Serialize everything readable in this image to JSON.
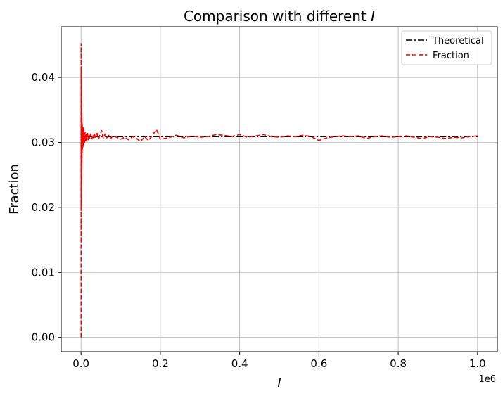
{
  "chart_data": {
    "type": "line",
    "title_text": "Comparison with different ",
    "title_var": "I",
    "xlabel": "I",
    "ylabel": "Fraction",
    "x_offset_label": "1e6",
    "xlim": [
      -50000,
      1050000
    ],
    "ylim": [
      -0.0022,
      0.0478
    ],
    "x_ticks": [
      0,
      200000,
      400000,
      600000,
      800000,
      1000000
    ],
    "x_tick_labels": [
      "0.0",
      "0.2",
      "0.4",
      "0.6",
      "0.8",
      "1.0"
    ],
    "y_ticks": [
      0.0,
      0.01,
      0.02,
      0.03,
      0.04
    ],
    "y_tick_labels": [
      "0.00",
      "0.01",
      "0.02",
      "0.03",
      "0.04"
    ],
    "grid": true,
    "legend_position": "top-right",
    "series": [
      {
        "name": "Theoretical",
        "color": "#000000",
        "style": "dashdot",
        "x": [
          0,
          1000000
        ],
        "y": [
          0.0309,
          0.0309
        ]
      },
      {
        "name": "Fraction",
        "color": "#ff0000",
        "style": "dashed",
        "x": [
          100,
          200,
          300,
          400,
          500,
          600,
          700,
          800,
          900,
          1000,
          1200,
          1400,
          1600,
          1800,
          2000,
          2300,
          2600,
          3000,
          3500,
          4000,
          4500,
          5000,
          5500,
          6000,
          7000,
          8000,
          9000,
          10000,
          11000,
          12000,
          13000,
          14000,
          15000,
          16000,
          18000,
          20000,
          22000,
          24000,
          26000,
          28000,
          30000,
          33000,
          36000,
          40000,
          44000,
          48000,
          52000,
          56000,
          60000,
          65000,
          70000,
          75000,
          80000,
          90000,
          100000,
          110000,
          120000,
          130000,
          140000,
          150000,
          160000,
          170000,
          180000,
          190000,
          200000,
          220000,
          240000,
          260000,
          280000,
          300000,
          320000,
          340000,
          360000,
          380000,
          400000,
          420000,
          440000,
          460000,
          480000,
          500000,
          520000,
          540000,
          560000,
          580000,
          600000,
          620000,
          640000,
          660000,
          680000,
          700000,
          720000,
          740000,
          760000,
          780000,
          800000,
          820000,
          840000,
          860000,
          880000,
          900000,
          920000,
          940000,
          960000,
          980000,
          1000000
        ],
        "y": [
          0.0,
          0.0452,
          0.015,
          0.041,
          0.02,
          0.038,
          0.0235,
          0.036,
          0.0245,
          0.0345,
          0.026,
          0.034,
          0.027,
          0.0335,
          0.0275,
          0.033,
          0.0285,
          0.0327,
          0.029,
          0.0325,
          0.0293,
          0.0323,
          0.0296,
          0.032,
          0.0298,
          0.0318,
          0.03,
          0.0316,
          0.0302,
          0.0314,
          0.0303,
          0.0313,
          0.0305,
          0.0315,
          0.0304,
          0.0312,
          0.0306,
          0.0313,
          0.0305,
          0.0311,
          0.0307,
          0.0314,
          0.0306,
          0.0316,
          0.0305,
          0.0312,
          0.0318,
          0.0306,
          0.0313,
          0.0307,
          0.0311,
          0.0306,
          0.031,
          0.0308,
          0.0305,
          0.0308,
          0.0304,
          0.0309,
          0.0306,
          0.0301,
          0.0309,
          0.0303,
          0.0311,
          0.032,
          0.0305,
          0.0307,
          0.0311,
          0.0307,
          0.031,
          0.0308,
          0.0309,
          0.0312,
          0.0311,
          0.0309,
          0.0312,
          0.0308,
          0.031,
          0.0312,
          0.0309,
          0.0308,
          0.031,
          0.0309,
          0.0311,
          0.0309,
          0.0303,
          0.0307,
          0.0309,
          0.031,
          0.0309,
          0.031,
          0.0306,
          0.0309,
          0.031,
          0.0308,
          0.0309,
          0.031,
          0.0308,
          0.0306,
          0.0309,
          0.0308,
          0.0306,
          0.0308,
          0.0307,
          0.0309,
          0.031
        ]
      }
    ]
  }
}
